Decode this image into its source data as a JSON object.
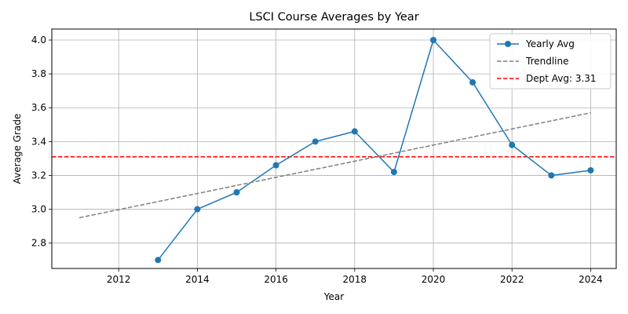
{
  "chart_data": {
    "type": "line",
    "title": "LSCI Course Averages by Year",
    "xlabel": "Year",
    "ylabel": "Average Grade",
    "xlim": [
      2010.3,
      2024.65
    ],
    "ylim": [
      2.65,
      4.065
    ],
    "xticks": [
      2012,
      2014,
      2016,
      2018,
      2020,
      2022,
      2024
    ],
    "yticks": [
      2.8,
      3.0,
      3.2,
      3.4,
      3.6,
      3.8,
      4.0
    ],
    "grid": true,
    "legend_position": "top-right",
    "series": [
      {
        "name": "Yearly Avg",
        "style": "solid-with-markers",
        "color": "#1f77b4",
        "x": [
          2013,
          2014,
          2015,
          2016,
          2017,
          2018,
          2019,
          2020,
          2021,
          2022,
          2023,
          2024
        ],
        "y": [
          2.7,
          3.0,
          3.1,
          3.26,
          3.4,
          3.46,
          3.22,
          4.0,
          3.75,
          3.38,
          3.2,
          3.23
        ]
      },
      {
        "name": "Trendline",
        "style": "dashed",
        "color": "#808080",
        "x": [
          2011,
          2024
        ],
        "y": [
          2.95,
          3.57
        ]
      }
    ],
    "reference_lines": [
      {
        "name": "Dept Avg: 3.31",
        "orientation": "horizontal",
        "value": 3.31,
        "style": "dashed",
        "color": "#ff0000"
      }
    ]
  }
}
